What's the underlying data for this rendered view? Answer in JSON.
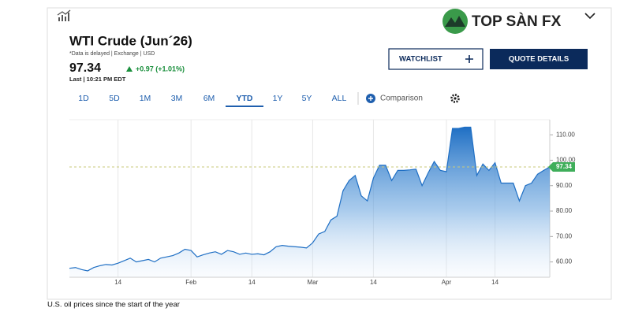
{
  "header": {
    "title": "WTI Crude (Jun´26)",
    "note": "*Data is delayed | Exchange | USD",
    "price": "97.34",
    "change": "+0.97 (+1.01%)",
    "last": "Last | 10:21 PM EDT"
  },
  "buttons": [
    "WATCHLIST",
    "QUOTE DETAILS"
  ],
  "tabs": [
    "1D",
    "5D",
    "1M",
    "3M",
    "6M",
    "YTD",
    "1Y",
    "5Y",
    "ALL"
  ],
  "comparison": "Comparison",
  "logo": "TOP SÀN FX",
  "caption": "U.S. oil prices since the start of the year",
  "chart_data": {
    "type": "area",
    "color": "#1f6fc4",
    "categories": [
      null,
      null,
      null,
      null,
      null,
      null,
      null,
      null,
      "14",
      null,
      null,
      null,
      null,
      null,
      null,
      null,
      null,
      null,
      null,
      null,
      "Feb",
      null,
      null,
      null,
      null,
      null,
      null,
      null,
      null,
      null,
      "14",
      null,
      null,
      null,
      null,
      null,
      null,
      null,
      null,
      null,
      "Mar",
      null,
      null,
      null,
      null,
      null,
      null,
      null,
      null,
      null,
      "14",
      null,
      null,
      null,
      null,
      null,
      null,
      null,
      null,
      null,
      null,
      null,
      "Apr",
      null,
      null,
      null,
      null,
      null,
      null,
      null,
      "14",
      null,
      null,
      null,
      null,
      null,
      null,
      null,
      null,
      null
    ],
    "values": [
      57.5,
      57.8,
      57.0,
      56.5,
      57.8,
      58.5,
      59.0,
      58.8,
      59.5,
      60.5,
      61.5,
      60.0,
      60.5,
      61.0,
      60.0,
      61.5,
      62.0,
      62.5,
      63.5,
      65.0,
      64.5,
      62.0,
      62.8,
      63.5,
      64.0,
      63.0,
      64.5,
      64.0,
      63.0,
      63.5,
      63.0,
      63.2,
      62.8,
      64.0,
      66.0,
      66.5,
      66.2,
      66.0,
      65.8,
      65.5,
      67.5,
      71.0,
      72.0,
      76.5,
      78.0,
      88.0,
      92.0,
      94.0,
      86.0,
      84.0,
      93.0,
      98.0,
      98.0,
      92.0,
      96.0,
      96.0,
      96.2,
      96.5,
      90.0,
      95.0,
      99.5,
      96.0,
      95.5,
      112.5,
      112.5,
      113.0,
      113.0,
      94.0,
      98.5,
      96.0,
      99.0,
      91.0,
      91.0,
      91.0,
      84.0,
      90.0,
      91.0,
      94.5,
      96.0,
      97.34
    ],
    "reference_line": 97.34,
    "ylim": [
      54,
      115
    ],
    "yticks": [
      {
        "value": 60,
        "label": "60.00"
      },
      {
        "value": 70,
        "label": "70.00"
      },
      {
        "value": 80,
        "label": "80.00"
      },
      {
        "value": 90,
        "label": "90.00"
      },
      {
        "value": 100,
        "label": "100.00"
      },
      {
        "value": 110,
        "label": "110.00"
      }
    ],
    "grid": "x"
  }
}
